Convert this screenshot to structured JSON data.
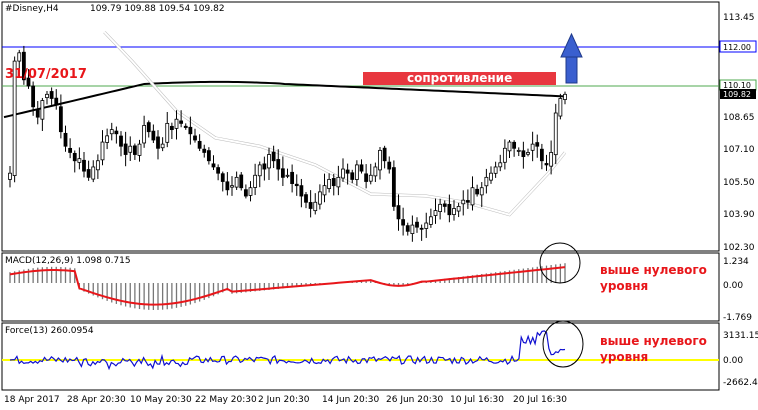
{
  "symbol_info": {
    "header": "#Disney,H4",
    "ohlc": "109.79 109.88 109.54 109.82"
  },
  "annotations": {
    "date": "31/07/2017",
    "resistance": "сопротивление",
    "macd_note_1": "выше нулевого",
    "macd_note_2": "уровня",
    "force_note_1": "выше нулевого",
    "force_note_2": "уровня"
  },
  "price_axis": {
    "ticks": [
      "113.45",
      "112.00",
      "110.10",
      "109.82",
      "108.65",
      "107.10",
      "105.50",
      "103.90",
      "102.30"
    ]
  },
  "tags": {
    "blue_line": "112.00",
    "green_line": "110.10",
    "current_price": "109.82"
  },
  "macd": {
    "label": "MACD(12,26,9) 1.098 0.715",
    "ticks": [
      "1.234",
      "0.00",
      "-1.769"
    ]
  },
  "force": {
    "label": "Force(13) 260.0954",
    "ticks": [
      "3131.154",
      "0.00",
      "-2662.42"
    ]
  },
  "time_axis": {
    "labels": [
      "18 Apr 2017",
      "28 Apr 20:30",
      "10 May 20:30",
      "22 May 20:30",
      "2 Jun 20:30",
      "14 Jun 20:30",
      "26 Jun 20:30",
      "10 Jul 16:30",
      "20 Jul 16:30"
    ]
  },
  "colors": {
    "bull_candle": "#ffffff",
    "bear_candle": "#000000",
    "ma_slow": "#000000",
    "ma_fast": "#ffffff",
    "resistance_box": "#e8373f",
    "blue_level": "#0000ff",
    "green_level": "#4fa84f",
    "macd_signal": "#e8161a",
    "force_line": "#1010d0",
    "zero_line": "#ffff00",
    "arrow": "#3a5fcf"
  },
  "chart_data": {
    "type": "candlestick",
    "price_range": [
      102.3,
      114.2
    ],
    "levels": {
      "blue": 112.0,
      "green": 110.1,
      "current": 109.82
    },
    "close": [
      106.0,
      111.4,
      111.8,
      110.5,
      110.2,
      109.2,
      108.7,
      109.5,
      109.8,
      109.6,
      109.3,
      108.0,
      107.3,
      107.0,
      106.6,
      106.7,
      106.1,
      105.8,
      106.3,
      106.6,
      107.5,
      107.8,
      108.1,
      107.9,
      107.3,
      106.9,
      107.3,
      106.9,
      107.4,
      108.3,
      108.0,
      107.6,
      107.2,
      107.4,
      108.4,
      108.1,
      108.6,
      108.4,
      108.2,
      107.9,
      107.6,
      107.2,
      107.0,
      106.6,
      106.3,
      106.0,
      105.6,
      105.2,
      105.4,
      105.8,
      105.3,
      104.9,
      105.3,
      105.9,
      106.4,
      106.2,
      106.9,
      106.6,
      106.2,
      105.8,
      105.9,
      105.5,
      105.4,
      104.9,
      104.6,
      104.3,
      104.6,
      105.1,
      105.4,
      105.7,
      105.4,
      105.8,
      106.2,
      106.0,
      105.7,
      106.4,
      106.1,
      105.6,
      105.9,
      106.3,
      107.1,
      106.6,
      106.2,
      104.4,
      103.8,
      103.5,
      103.2,
      103.5,
      103.4,
      103.3,
      103.6,
      103.9,
      104.2,
      104.5,
      104.4,
      104.0,
      104.3,
      104.4,
      104.7,
      104.6,
      105.3,
      105.0,
      105.3,
      105.8,
      106.0,
      106.3,
      106.5,
      107.2,
      107.5,
      107.2,
      107.1,
      106.8,
      107.0,
      107.4,
      107.3,
      106.6,
      106.4,
      107.0,
      108.9,
      109.6,
      109.8
    ],
    "ma_slow_desc": "long moving average rising to ~110.3 in mid-May, flat, sloping down to 109.6",
    "ma_fast_desc": "short moving average with dip to ~104.5 late June and rebound to 107",
    "macd_histogram_range": [
      -1.769,
      1.234
    ],
    "force_range": [
      -2662.42,
      3131.154
    ]
  }
}
